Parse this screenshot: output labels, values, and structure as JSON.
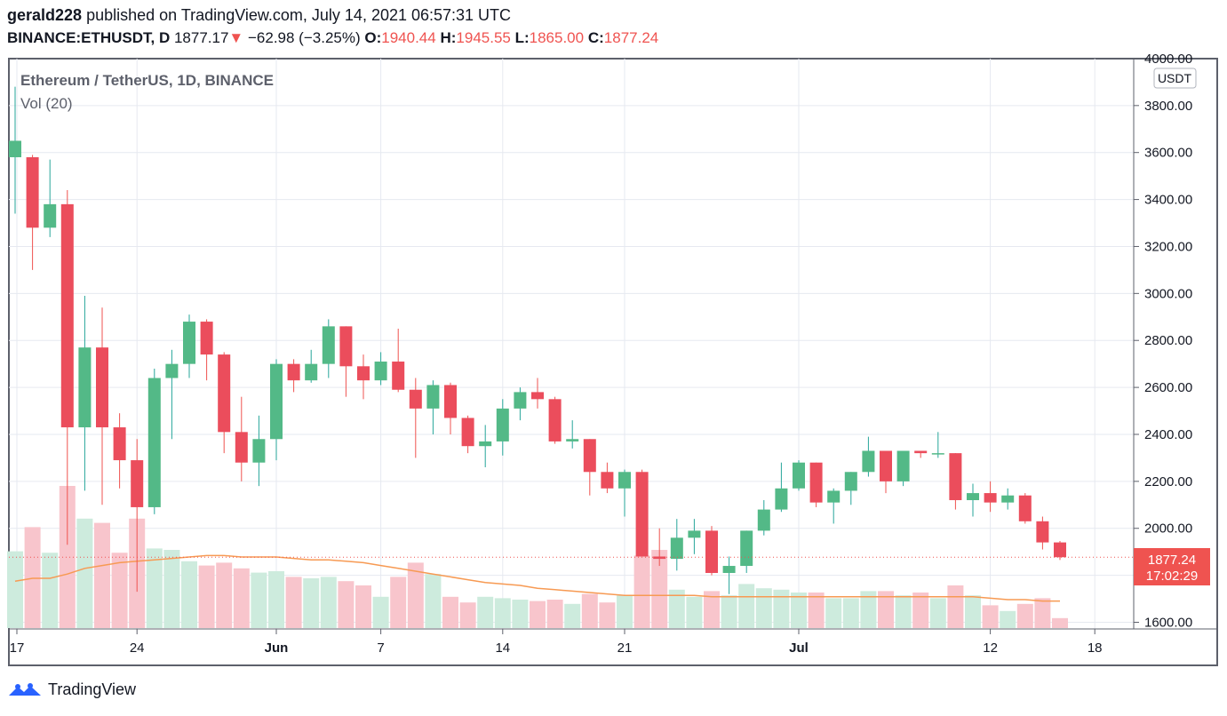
{
  "header": {
    "author": "gerald228",
    "published_text": "published on TradingView.com, July 14, 2021 06:57:31 UTC",
    "symbol": "BINANCE:ETHUSDT, D",
    "last": "1877.17",
    "change_arrow": "▼",
    "change": "−62.98 (−3.25%)",
    "o_label": "O:",
    "o_value": "1940.44",
    "h_label": "H:",
    "h_value": "1945.55",
    "l_label": "L:",
    "l_value": "1865.00",
    "c_label": "C:",
    "c_value": "1877.24"
  },
  "chart_title": "Ethereum / TetherUS, 1D, BINANCE",
  "volume_label": "Vol (20)",
  "currency_badge": "USDT",
  "price_tag": {
    "price": "1877.24",
    "countdown": "17:02:29"
  },
  "footer_brand": "TradingView",
  "colors": {
    "up": "#26a69a",
    "down": "#ef5350",
    "up_body": "#53b987",
    "down_body": "#eb4d5c",
    "vol_up": "#cdebdd",
    "vol_down": "#f8c5cc",
    "ma": "#f79a53",
    "grid": "#e6e9f0"
  },
  "chart_data": {
    "type": "candlestick",
    "title": "Ethereum / TetherUS, 1D, BINANCE",
    "ylim": [
      1600,
      4000
    ],
    "y_ticks": [
      "1600.00",
      "1800.00",
      "2000.00",
      "2200.00",
      "2400.00",
      "2600.00",
      "2800.00",
      "3000.00",
      "3200.00",
      "3400.00",
      "3600.00",
      "3800.00",
      "4000.00"
    ],
    "x_ticks": [
      {
        "label": "17",
        "index": 0
      },
      {
        "label": "24",
        "index": 7
      },
      {
        "label": "Jun",
        "index": 15
      },
      {
        "label": "7",
        "index": 21
      },
      {
        "label": "14",
        "index": 28
      },
      {
        "label": "21",
        "index": 35
      },
      {
        "label": "Jul",
        "index": 45
      },
      {
        "label": "12",
        "index": 56
      },
      {
        "label": "18",
        "index": 62
      }
    ],
    "candles": [
      {
        "o": 3580,
        "h": 3880,
        "l": 3340,
        "c": 3650
      },
      {
        "o": 3580,
        "h": 3590,
        "l": 3100,
        "c": 3280
      },
      {
        "o": 3280,
        "h": 3570,
        "l": 3240,
        "c": 3380
      },
      {
        "o": 3380,
        "h": 3440,
        "l": 1930,
        "c": 2430
      },
      {
        "o": 2430,
        "h": 2990,
        "l": 2160,
        "c": 2770
      },
      {
        "o": 2770,
        "h": 2940,
        "l": 2100,
        "c": 2430
      },
      {
        "o": 2430,
        "h": 2490,
        "l": 2170,
        "c": 2290
      },
      {
        "o": 2290,
        "h": 2380,
        "l": 1730,
        "c": 2090
      },
      {
        "o": 2090,
        "h": 2680,
        "l": 2060,
        "c": 2640
      },
      {
        "o": 2640,
        "h": 2760,
        "l": 2380,
        "c": 2700
      },
      {
        "o": 2700,
        "h": 2910,
        "l": 2640,
        "c": 2880
      },
      {
        "o": 2880,
        "h": 2890,
        "l": 2630,
        "c": 2740
      },
      {
        "o": 2740,
        "h": 2750,
        "l": 2320,
        "c": 2410
      },
      {
        "o": 2410,
        "h": 2560,
        "l": 2200,
        "c": 2280
      },
      {
        "o": 2280,
        "h": 2480,
        "l": 2180,
        "c": 2380
      },
      {
        "o": 2380,
        "h": 2720,
        "l": 2290,
        "c": 2700
      },
      {
        "o": 2700,
        "h": 2720,
        "l": 2580,
        "c": 2630
      },
      {
        "o": 2630,
        "h": 2760,
        "l": 2620,
        "c": 2700
      },
      {
        "o": 2700,
        "h": 2890,
        "l": 2640,
        "c": 2860
      },
      {
        "o": 2860,
        "h": 2860,
        "l": 2560,
        "c": 2690
      },
      {
        "o": 2690,
        "h": 2740,
        "l": 2550,
        "c": 2630
      },
      {
        "o": 2630,
        "h": 2750,
        "l": 2610,
        "c": 2710
      },
      {
        "o": 2710,
        "h": 2850,
        "l": 2580,
        "c": 2590
      },
      {
        "o": 2590,
        "h": 2640,
        "l": 2300,
        "c": 2510
      },
      {
        "o": 2510,
        "h": 2630,
        "l": 2400,
        "c": 2610
      },
      {
        "o": 2610,
        "h": 2620,
        "l": 2400,
        "c": 2470
      },
      {
        "o": 2470,
        "h": 2480,
        "l": 2320,
        "c": 2350
      },
      {
        "o": 2350,
        "h": 2440,
        "l": 2260,
        "c": 2370
      },
      {
        "o": 2370,
        "h": 2550,
        "l": 2310,
        "c": 2510
      },
      {
        "o": 2510,
        "h": 2600,
        "l": 2460,
        "c": 2580
      },
      {
        "o": 2580,
        "h": 2640,
        "l": 2510,
        "c": 2550
      },
      {
        "o": 2550,
        "h": 2560,
        "l": 2360,
        "c": 2370
      },
      {
        "o": 2370,
        "h": 2460,
        "l": 2340,
        "c": 2380
      },
      {
        "o": 2380,
        "h": 2380,
        "l": 2140,
        "c": 2240
      },
      {
        "o": 2240,
        "h": 2280,
        "l": 2150,
        "c": 2170
      },
      {
        "o": 2170,
        "h": 2250,
        "l": 2050,
        "c": 2240
      },
      {
        "o": 2240,
        "h": 2250,
        "l": 1880,
        "c": 1880
      },
      {
        "o": 1880,
        "h": 2000,
        "l": 1840,
        "c": 1870
      },
      {
        "o": 1870,
        "h": 2040,
        "l": 1820,
        "c": 1960
      },
      {
        "o": 1960,
        "h": 2040,
        "l": 1890,
        "c": 1990
      },
      {
        "o": 1990,
        "h": 2010,
        "l": 1800,
        "c": 1810
      },
      {
        "o": 1810,
        "h": 1880,
        "l": 1720,
        "c": 1840
      },
      {
        "o": 1840,
        "h": 1990,
        "l": 1810,
        "c": 1990
      },
      {
        "o": 1990,
        "h": 2120,
        "l": 1970,
        "c": 2080
      },
      {
        "o": 2080,
        "h": 2280,
        "l": 2070,
        "c": 2170
      },
      {
        "o": 2170,
        "h": 2290,
        "l": 2160,
        "c": 2280
      },
      {
        "o": 2280,
        "h": 2280,
        "l": 2090,
        "c": 2110
      },
      {
        "o": 2110,
        "h": 2170,
        "l": 2020,
        "c": 2160
      },
      {
        "o": 2160,
        "h": 2240,
        "l": 2100,
        "c": 2240
      },
      {
        "o": 2240,
        "h": 2390,
        "l": 2220,
        "c": 2330
      },
      {
        "o": 2330,
        "h": 2330,
        "l": 2150,
        "c": 2200
      },
      {
        "o": 2200,
        "h": 2330,
        "l": 2180,
        "c": 2330
      },
      {
        "o": 2330,
        "h": 2330,
        "l": 2300,
        "c": 2320
      },
      {
        "o": 2320,
        "h": 2410,
        "l": 2300,
        "c": 2320
      },
      {
        "o": 2320,
        "h": 2320,
        "l": 2080,
        "c": 2120
      },
      {
        "o": 2120,
        "h": 2190,
        "l": 2050,
        "c": 2150
      },
      {
        "o": 2150,
        "h": 2200,
        "l": 2070,
        "c": 2110
      },
      {
        "o": 2110,
        "h": 2170,
        "l": 2080,
        "c": 2140
      },
      {
        "o": 2140,
        "h": 2150,
        "l": 2020,
        "c": 2030
      },
      {
        "o": 2030,
        "h": 2050,
        "l": 1910,
        "c": 1940
      },
      {
        "o": 1940,
        "h": 1946,
        "l": 1865,
        "c": 1877
      }
    ],
    "volume": [
      0.54,
      0.71,
      0.53,
      1.0,
      0.77,
      0.74,
      0.53,
      0.77,
      0.56,
      0.55,
      0.47,
      0.44,
      0.46,
      0.42,
      0.39,
      0.4,
      0.36,
      0.35,
      0.36,
      0.33,
      0.3,
      0.22,
      0.36,
      0.46,
      0.38,
      0.22,
      0.18,
      0.22,
      0.21,
      0.2,
      0.19,
      0.2,
      0.17,
      0.24,
      0.18,
      0.23,
      0.51,
      0.55,
      0.27,
      0.22,
      0.26,
      0.23,
      0.31,
      0.28,
      0.27,
      0.25,
      0.25,
      0.21,
      0.21,
      0.26,
      0.26,
      0.23,
      0.25,
      0.21,
      0.3,
      0.23,
      0.16,
      0.12,
      0.17,
      0.21,
      0.07
    ],
    "volume_ma": [
      0.33,
      0.35,
      0.35,
      0.38,
      0.42,
      0.44,
      0.46,
      0.47,
      0.48,
      0.49,
      0.5,
      0.51,
      0.51,
      0.5,
      0.5,
      0.5,
      0.49,
      0.48,
      0.48,
      0.47,
      0.46,
      0.44,
      0.42,
      0.4,
      0.38,
      0.36,
      0.34,
      0.32,
      0.31,
      0.3,
      0.28,
      0.27,
      0.26,
      0.25,
      0.24,
      0.23,
      0.23,
      0.23,
      0.23,
      0.23,
      0.22,
      0.22,
      0.22,
      0.22,
      0.22,
      0.22,
      0.22,
      0.22,
      0.22,
      0.22,
      0.22,
      0.22,
      0.22,
      0.22,
      0.22,
      0.22,
      0.21,
      0.2,
      0.2,
      0.19,
      0.19
    ]
  }
}
